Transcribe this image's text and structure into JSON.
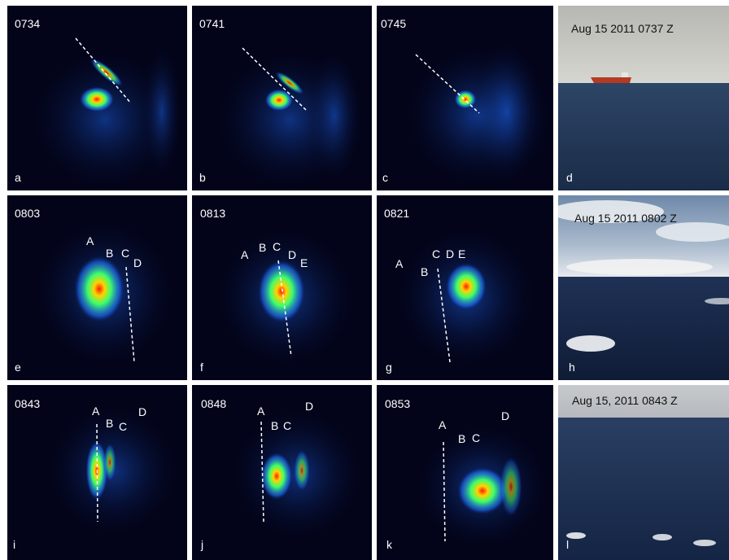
{
  "panels": [
    {
      "id": "a",
      "time": "0734",
      "letter": "a",
      "markers": []
    },
    {
      "id": "b",
      "time": "0741",
      "letter": "b",
      "markers": []
    },
    {
      "id": "c",
      "time": "0745",
      "letter": "c",
      "markers": []
    },
    {
      "id": "d",
      "caption": "Aug 15 2011 0737 Z",
      "letter": "d"
    },
    {
      "id": "e",
      "time": "0803",
      "letter": "e",
      "markers": [
        "A",
        "B",
        "C",
        "D"
      ]
    },
    {
      "id": "f",
      "time": "0813",
      "letter": "f",
      "markers": [
        "A",
        "B",
        "C",
        "D",
        "E"
      ]
    },
    {
      "id": "g",
      "time": "0821",
      "letter": "g",
      "markers": [
        "A",
        "B",
        "C",
        "D",
        "E"
      ]
    },
    {
      "id": "h",
      "caption": "Aug 15 2011 0802 Z",
      "letter": "h"
    },
    {
      "id": "i",
      "time": "0843",
      "letter": "i",
      "markers": [
        "A",
        "B",
        "C",
        "D"
      ]
    },
    {
      "id": "j",
      "time": "0848",
      "letter": "j",
      "markers": [
        "A",
        "B",
        "C",
        "D"
      ]
    },
    {
      "id": "k",
      "time": "0853",
      "letter": "k",
      "markers": [
        "A",
        "B",
        "C",
        "D"
      ]
    },
    {
      "id": "l",
      "caption": "Aug 15, 2011 0843 Z",
      "letter": "l"
    }
  ],
  "colors": {
    "radar_background": "#03041a",
    "radar_hot": "#ff1a00",
    "radar_warm": "#ffd200",
    "radar_mid": "#3cff6a",
    "radar_cool": "#1e6bff",
    "sky": "#c9ccc8",
    "sea": "#1b2b4a"
  }
}
